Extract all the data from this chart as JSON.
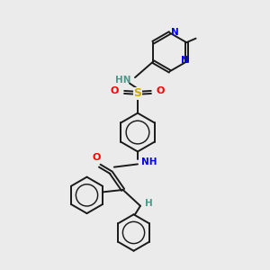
{
  "background_color": "#ebebeb",
  "figsize": [
    3.0,
    3.0
  ],
  "dpi": 100,
  "colors": {
    "carbon_bond": "#1a1a1a",
    "nitrogen": "#0000ee",
    "oxygen": "#ff0000",
    "sulfur": "#ccaa00",
    "hn_color": "#4a9a8a"
  },
  "layout": {
    "xlim": [
      0,
      10
    ],
    "ylim": [
      0,
      10
    ]
  }
}
